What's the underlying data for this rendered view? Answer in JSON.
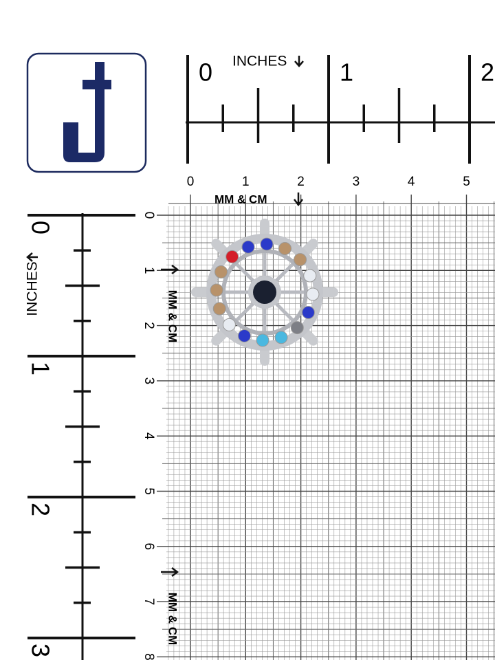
{
  "top_inch_ruler": {
    "label": "INCHES",
    "ticks": [
      "0",
      "1",
      "2"
    ]
  },
  "top_cm_ruler": {
    "label": "MM & CM",
    "ticks": [
      "0",
      "1",
      "2",
      "3",
      "4",
      "5"
    ]
  },
  "left_inch_ruler": {
    "label": "INCHES",
    "ticks": [
      "0",
      "1",
      "2",
      "3"
    ]
  },
  "left_cm_ruler": {
    "label": "MM & CM",
    "ticks": [
      "0",
      "1",
      "2",
      "3",
      "4",
      "5",
      "6",
      "7",
      "8"
    ]
  }
}
